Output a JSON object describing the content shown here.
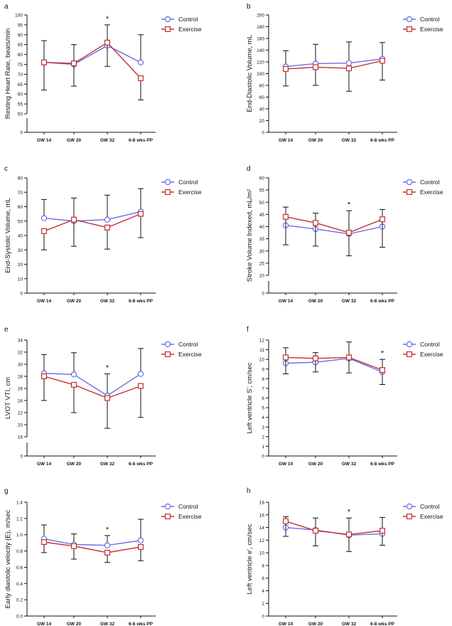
{
  "figure": {
    "categories": [
      "GW 14",
      "GW 20",
      "GW 32",
      "6-8 wks PP"
    ],
    "legend": [
      "Control",
      "Exercise"
    ],
    "colors": {
      "control": "#6a6ee6",
      "exercise": "#c0312f",
      "axis": "#111111"
    }
  },
  "chart_data": [
    {
      "panel": "a",
      "type": "line",
      "ylabel": "Resting Heart Rate, beats/min",
      "ylim": [
        50,
        100
      ],
      "yticks": [
        50,
        55,
        60,
        65,
        70,
        75,
        80,
        85,
        90,
        95,
        100
      ],
      "tick_decimals": 0,
      "axis_break": true,
      "break_zero_label": "0",
      "categories": [
        "GW 14",
        "GW 20",
        "GW 32",
        "6-8 wks PP"
      ],
      "series": [
        {
          "name": "Control",
          "values": [
            76,
            75,
            84.5,
            76
          ],
          "err_up": [
            11,
            10,
            10.5,
            14
          ],
          "err_down": [
            0,
            0,
            0,
            0
          ]
        },
        {
          "name": "Exercise",
          "values": [
            76,
            75.5,
            86,
            68
          ],
          "err_up": [
            0,
            0,
            0,
            0
          ],
          "err_down": [
            14,
            11.5,
            12,
            11
          ]
        }
      ],
      "significance": [
        {
          "category": "GW 32",
          "marker": "*"
        }
      ]
    },
    {
      "panel": "b",
      "type": "line",
      "ylabel": "End-Diastolic Volume, mL",
      "ylim": [
        0,
        200
      ],
      "yticks": [
        0,
        20,
        40,
        60,
        80,
        100,
        120,
        140,
        160,
        180,
        200
      ],
      "tick_decimals": 0,
      "axis_break": false,
      "categories": [
        "GW 14",
        "GW 20",
        "GW 32",
        "6-8 wks PP"
      ],
      "series": [
        {
          "name": "Control",
          "values": [
            112,
            117,
            118,
            125
          ],
          "err_up": [
            27,
            33,
            36,
            28
          ],
          "err_down": [
            0,
            0,
            0,
            0
          ]
        },
        {
          "name": "Exercise",
          "values": [
            108,
            111,
            109,
            122
          ],
          "err_up": [
            0,
            0,
            0,
            0
          ],
          "err_down": [
            29,
            31,
            39,
            33
          ]
        }
      ],
      "significance": []
    },
    {
      "panel": "c",
      "type": "line",
      "ylabel": "End-Systolic Volume, mL",
      "ylim": [
        0,
        80
      ],
      "yticks": [
        0,
        10,
        20,
        30,
        40,
        50,
        60,
        70,
        80
      ],
      "tick_decimals": 0,
      "axis_break": false,
      "categories": [
        "GW 14",
        "GW 20",
        "GW 32",
        "6-8 wks PP"
      ],
      "series": [
        {
          "name": "Control",
          "values": [
            52,
            50,
            51,
            56.5
          ],
          "err_up": [
            13,
            16,
            17,
            16
          ],
          "err_down": [
            0,
            0,
            0,
            0
          ]
        },
        {
          "name": "Exercise",
          "values": [
            43,
            51,
            45.5,
            55
          ],
          "err_up": [
            0,
            0,
            0,
            0
          ],
          "err_down": [
            13,
            18.5,
            15,
            16.5
          ]
        }
      ],
      "significance": []
    },
    {
      "panel": "d",
      "type": "line",
      "ylabel": "Stroke Volume Indexed, mL/m²",
      "ylim": [
        20,
        60
      ],
      "yticks": [
        20,
        25,
        30,
        35,
        40,
        45,
        50,
        55,
        60
      ],
      "tick_decimals": 0,
      "axis_break": true,
      "break_zero_label": "0",
      "categories": [
        "GW 14",
        "GW 20",
        "GW 32",
        "6-8 wks PP"
      ],
      "series": [
        {
          "name": "Control",
          "values": [
            40.5,
            39,
            37,
            40
          ],
          "err_up": [
            7.5,
            6.5,
            9.5,
            7
          ],
          "err_down": [
            0,
            0,
            0,
            0
          ]
        },
        {
          "name": "Exercise",
          "values": [
            44,
            41.5,
            37.5,
            43
          ],
          "err_up": [
            0,
            0,
            0,
            0
          ],
          "err_down": [
            11.5,
            9.5,
            9.5,
            11.5
          ]
        }
      ],
      "significance": [
        {
          "category": "GW 32",
          "marker": "*"
        }
      ]
    },
    {
      "panel": "e",
      "type": "line",
      "ylabel": "LVOT VTI, cm",
      "ylim": [
        18,
        34
      ],
      "yticks": [
        18,
        20,
        22,
        24,
        26,
        28,
        30,
        32,
        34
      ],
      "tick_decimals": 0,
      "axis_break": true,
      "break_zero_label": "0",
      "categories": [
        "GW 14",
        "GW 20",
        "GW 32",
        "6-8 wks PP"
      ],
      "series": [
        {
          "name": "Control",
          "values": [
            28.5,
            28.3,
            24.8,
            28.4
          ],
          "err_up": [
            3.1,
            3.6,
            3.6,
            4.2
          ],
          "err_down": [
            0,
            0,
            0,
            0
          ]
        },
        {
          "name": "Exercise",
          "values": [
            28,
            26.6,
            24.4,
            26.4
          ],
          "err_up": [
            0,
            0,
            0,
            0
          ],
          "err_down": [
            4,
            4.6,
            5,
            5.2
          ]
        }
      ],
      "significance": [
        {
          "category": "GW 32",
          "marker": "*"
        }
      ]
    },
    {
      "panel": "f",
      "type": "line",
      "ylabel": "Left ventricle S', cm/sec",
      "ylim": [
        0,
        12
      ],
      "yticks": [
        0,
        1,
        2,
        3,
        4,
        5,
        6,
        7,
        8,
        9,
        10,
        11,
        12
      ],
      "tick_decimals": 0,
      "axis_break": false,
      "categories": [
        "GW 14",
        "GW 20",
        "GW 32",
        "6-8 wks PP"
      ],
      "series": [
        {
          "name": "Control",
          "values": [
            9.6,
            9.7,
            10.1,
            8.7
          ],
          "err_up": [
            1.6,
            1,
            1.7,
            1.3
          ],
          "err_down": [
            0,
            0,
            0,
            0
          ]
        },
        {
          "name": "Exercise",
          "values": [
            10.2,
            10.1,
            10.2,
            8.9
          ],
          "err_up": [
            0,
            0,
            0,
            0
          ],
          "err_down": [
            1.7,
            1.4,
            1.6,
            1.5
          ]
        }
      ],
      "significance": [
        {
          "category": "6-8 wks PP",
          "marker": "*"
        }
      ]
    },
    {
      "panel": "g",
      "type": "line",
      "ylabel": "Early diastolic velocity (E), m/sec",
      "ylim": [
        0,
        1.4
      ],
      "yticks": [
        0,
        0.2,
        0.4,
        0.6,
        0.8,
        1.0,
        1.2,
        1.4
      ],
      "tick_decimals": 1,
      "axis_break": false,
      "categories": [
        "GW 14",
        "GW 20",
        "GW 32",
        "6-8 wks PP"
      ],
      "series": [
        {
          "name": "Control",
          "values": [
            0.95,
            0.88,
            0.87,
            0.93
          ],
          "err_up": [
            0.17,
            0.13,
            0.12,
            0.26
          ],
          "err_down": [
            0,
            0,
            0,
            0
          ]
        },
        {
          "name": "Exercise",
          "values": [
            0.91,
            0.86,
            0.78,
            0.85
          ],
          "err_up": [
            0,
            0,
            0,
            0
          ],
          "err_down": [
            0.13,
            0.16,
            0.12,
            0.17
          ]
        }
      ],
      "significance": [
        {
          "category": "GW 32",
          "marker": "*"
        }
      ]
    },
    {
      "panel": "h",
      "type": "line",
      "ylabel": "Left ventricle e', cm/sec",
      "ylim": [
        0,
        18
      ],
      "yticks": [
        0,
        2,
        4,
        6,
        8,
        10,
        12,
        14,
        16,
        18
      ],
      "tick_decimals": 0,
      "axis_break": false,
      "categories": [
        "GW 14",
        "GW 20",
        "GW 32",
        "6-8 wks PP"
      ],
      "series": [
        {
          "name": "Control",
          "values": [
            14,
            13.6,
            12.8,
            13
          ],
          "err_up": [
            1.7,
            1.9,
            2.7,
            2.6
          ],
          "err_down": [
            0,
            0,
            0,
            0
          ]
        },
        {
          "name": "Exercise",
          "values": [
            15,
            13.5,
            12.9,
            13.5
          ],
          "err_up": [
            0,
            0,
            0,
            0
          ],
          "err_down": [
            2.4,
            2.4,
            2.7,
            2.3
          ]
        }
      ],
      "significance": [
        {
          "category": "GW 32",
          "marker": "*"
        }
      ]
    }
  ]
}
